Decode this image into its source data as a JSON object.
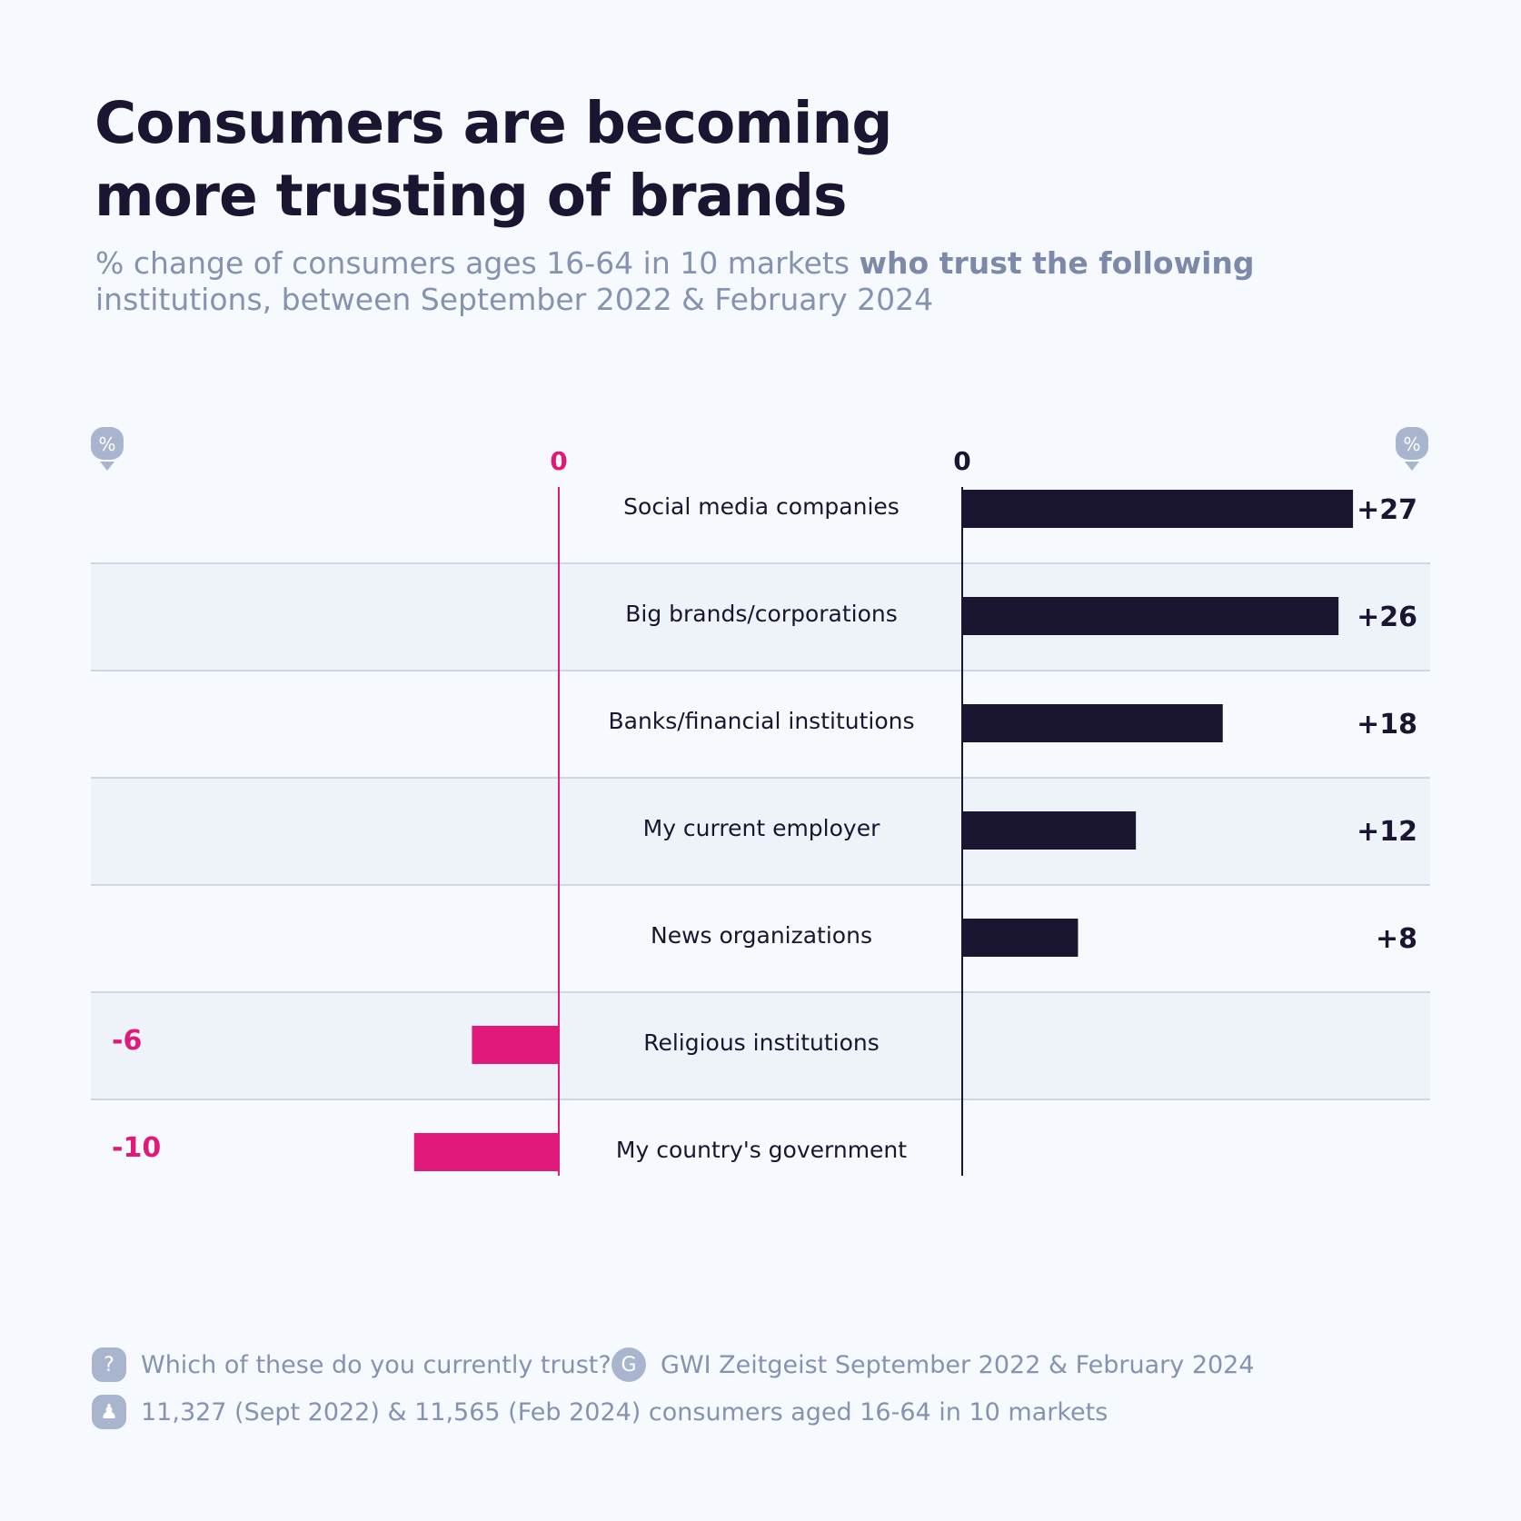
{
  "title_line1": "Consumers are becoming",
  "title_line2": "more trusting of brands",
  "subtitle_plain": "% change of consumers ages 16-64 in 10 markets ",
  "subtitle_bold": "who trust the following",
  "subtitle_line2": "institutions, between September 2022 & February 2024",
  "colors": {
    "positive": "#1a1530",
    "negative": "#e0197a",
    "background": "#f6f9fd"
  },
  "chart_data": {
    "type": "bar",
    "orientation": "horizontal",
    "unit_icon": "%",
    "zero_label_negative": "0",
    "zero_label_positive": "0",
    "categories": [
      "Social media companies",
      "Big brands/corporations",
      "Banks/financial institutions",
      "My current employer",
      "News organizations",
      "Religious institutions",
      "My country's government"
    ],
    "values": [
      27,
      26,
      18,
      12,
      8,
      -6,
      -10
    ],
    "labels": [
      "+27",
      "+26",
      "+18",
      "+12",
      "+8",
      "-6",
      "-10"
    ]
  },
  "footer": {
    "question": "Which of these do you currently trust?",
    "source": "GWI Zeitgeist September 2022 & February 2024",
    "sample": "11,327 (Sept 2022) & 11,565 (Feb 2024) consumers aged 16-64 in 10 markets"
  }
}
